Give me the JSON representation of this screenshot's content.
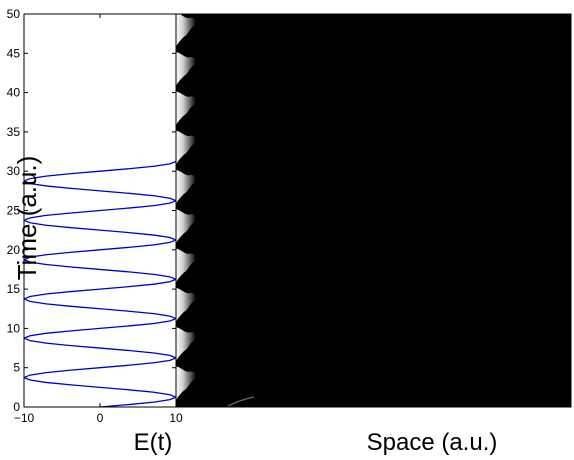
{
  "chart_data": [
    {
      "type": "line",
      "title": "",
      "xlabel": "E(t)",
      "ylabel": "Time (a.u.)",
      "xlim": [
        -10,
        10
      ],
      "ylim": [
        0,
        50
      ],
      "xticks": [
        -10,
        0,
        10
      ],
      "xtick_labels": [
        "−10",
        "0",
        "10"
      ],
      "yticks": [
        0,
        5,
        10,
        15,
        20,
        25,
        30,
        35,
        40,
        45,
        50
      ],
      "grid": false,
      "series": [
        {
          "color": "#0000cc",
          "x": [
            0,
            3.8,
            7.1,
            9.2,
            10,
            9.2,
            7.1,
            3.8,
            0,
            -3.8,
            -7.1,
            -9.2,
            -10,
            -9.2,
            -7.1,
            -3.8,
            0,
            3.8,
            7.1,
            9.2,
            10,
            9.2,
            7.1,
            3.8,
            0,
            -3.8,
            -7.1,
            -9.2,
            -10,
            -9.2,
            -7.1,
            -3.8,
            0,
            3.8,
            7.1,
            9.2,
            10,
            9.2,
            7.1,
            3.8,
            0,
            -3.8,
            -7.1,
            -9.2,
            -10,
            -9.2,
            -7.1,
            -3.8,
            0,
            3.8,
            7.1,
            9.2,
            10,
            9.2,
            7.1,
            3.8,
            0,
            -3.8,
            -7.1,
            -9.2,
            -10,
            -9.2,
            -7.1,
            -3.8,
            0,
            3.8,
            7.1,
            9.2,
            10,
            9.2,
            7.1,
            3.8,
            0,
            -3.8,
            -7.1,
            -9.2,
            -10,
            -9.2,
            -7.1,
            -3.8,
            0,
            3.8,
            7.1,
            9.2,
            10,
            9.2,
            7.1,
            3.8,
            0,
            -3.8,
            -7.1,
            -9.2,
            -10,
            -9.2,
            -7.1,
            -3.8,
            0,
            3.8,
            7.1,
            9.2,
            10
          ],
          "y": [
            0,
            0.3125,
            0.625,
            0.9375,
            1.25,
            1.5625,
            1.875,
            2.1875,
            2.5,
            2.8125,
            3.125,
            3.4375,
            3.75,
            4.0625,
            4.375,
            4.6875,
            5,
            5.3125,
            5.625,
            5.9375,
            6.25,
            6.5625,
            6.875,
            7.1875,
            7.5,
            7.8125,
            8.125,
            8.4375,
            8.75,
            9.0625,
            9.375,
            9.6875,
            10,
            10.3125,
            10.625,
            10.9375,
            11.25,
            11.5625,
            11.875,
            12.1875,
            12.5,
            12.8125,
            13.125,
            13.4375,
            13.75,
            14.0625,
            14.375,
            14.6875,
            15,
            15.3125,
            15.625,
            15.9375,
            16.25,
            16.5625,
            16.875,
            17.1875,
            17.5,
            17.8125,
            18.125,
            18.4375,
            18.75,
            19.0625,
            19.375,
            19.6875,
            20,
            20.3125,
            20.625,
            20.9375,
            21.25,
            21.5625,
            21.875,
            22.1875,
            22.5,
            22.8125,
            23.125,
            23.4375,
            23.75,
            24.0625,
            24.375,
            24.6875,
            25,
            25.3125,
            25.625,
            25.9375,
            26.25,
            26.5625,
            26.875,
            27.1875,
            27.5,
            27.8125,
            28.125,
            28.4375,
            28.75,
            29.0625,
            29.375,
            29.6875,
            30,
            30.3125,
            30.625,
            30.9375,
            31.25
          ]
        }
      ]
    },
    {
      "type": "heatmap",
      "title": "",
      "xlabel": "Space (a.u.)",
      "ylabel": "",
      "colormap": "gray",
      "ylim": [
        0,
        50
      ],
      "pulse_times": [
        3,
        8,
        13,
        18,
        23,
        28,
        33,
        38,
        43,
        48
      ],
      "background_color": "#000000"
    }
  ]
}
